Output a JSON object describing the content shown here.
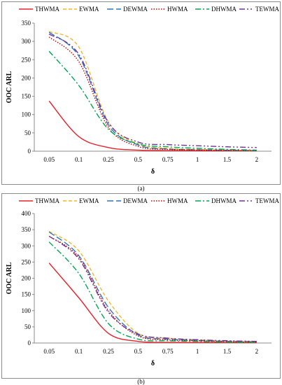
{
  "chart_data": [
    {
      "type": "line",
      "panel_label": "(a)",
      "categories": [
        "0.05",
        "0.1",
        "0.25",
        "0.5",
        "0.75",
        "1",
        "1.5",
        "2"
      ],
      "xlabel": "δ",
      "ylabel": "OOC ARL",
      "ylim": [
        0,
        350
      ],
      "yticks": [
        0,
        50,
        100,
        150,
        200,
        250,
        300,
        350
      ],
      "legend_position": "top",
      "series": [
        {
          "name": "THWMA",
          "color": "#e8212a",
          "dash": "",
          "values": [
            137,
            40,
            10,
            3,
            1.8,
            1.3,
            1.1,
            1
          ]
        },
        {
          "name": "EWMA",
          "color": "#f2b632",
          "dash": "5,3",
          "values": [
            327,
            285,
            80,
            20,
            8,
            5,
            3,
            2
          ]
        },
        {
          "name": "DEWMA",
          "color": "#2e75b6",
          "dash": "9,4",
          "values": [
            325,
            260,
            72,
            17,
            6,
            4,
            2.5,
            1.5
          ]
        },
        {
          "name": "HWMA",
          "color": "#c00000",
          "dash": "1.5,2",
          "values": [
            312,
            245,
            65,
            13,
            5,
            3,
            2,
            1.3
          ]
        },
        {
          "name": "DHWMA",
          "color": "#00a650",
          "dash": "8,3,2,3",
          "values": [
            273,
            180,
            60,
            20,
            12,
            8,
            5,
            3
          ]
        },
        {
          "name": "TEWMA",
          "color": "#7030a0",
          "dash": "8,3,2,3,2,3",
          "values": [
            320,
            265,
            78,
            25,
            18,
            15,
            12,
            10
          ]
        }
      ]
    },
    {
      "type": "line",
      "panel_label": "(b)",
      "categories": [
        "0.05",
        "0.1",
        "0.25",
        "0.5",
        "0.75",
        "1",
        "1.5",
        "2"
      ],
      "xlabel": "δ",
      "ylabel": "OOC ARL",
      "ylim": [
        0,
        400
      ],
      "yticks": [
        0,
        50,
        100,
        150,
        200,
        250,
        300,
        350,
        400
      ],
      "legend_position": "top",
      "series": [
        {
          "name": "THWMA",
          "color": "#e8212a",
          "dash": "",
          "values": [
            247,
            140,
            30,
            5,
            2,
            1.5,
            1.2,
            1
          ]
        },
        {
          "name": "EWMA",
          "color": "#f2b632",
          "dash": "5,3",
          "values": [
            345,
            285,
            130,
            30,
            15,
            10,
            6,
            5
          ]
        },
        {
          "name": "DEWMA",
          "color": "#2e75b6",
          "dash": "9,4",
          "values": [
            343,
            270,
            110,
            25,
            12,
            8,
            5,
            4
          ]
        },
        {
          "name": "HWMA",
          "color": "#c00000",
          "dash": "1.5,2",
          "values": [
            330,
            265,
            100,
            22,
            10,
            7,
            4,
            3
          ]
        },
        {
          "name": "DHWMA",
          "color": "#00a650",
          "dash": "8,3,2,3",
          "values": [
            312,
            215,
            60,
            12,
            7,
            5,
            3,
            2
          ]
        },
        {
          "name": "TEWMA",
          "color": "#7030a0",
          "dash": "8,3,2,3,2,3",
          "values": [
            330,
            260,
            95,
            28,
            15,
            10,
            7,
            5
          ]
        }
      ]
    }
  ]
}
